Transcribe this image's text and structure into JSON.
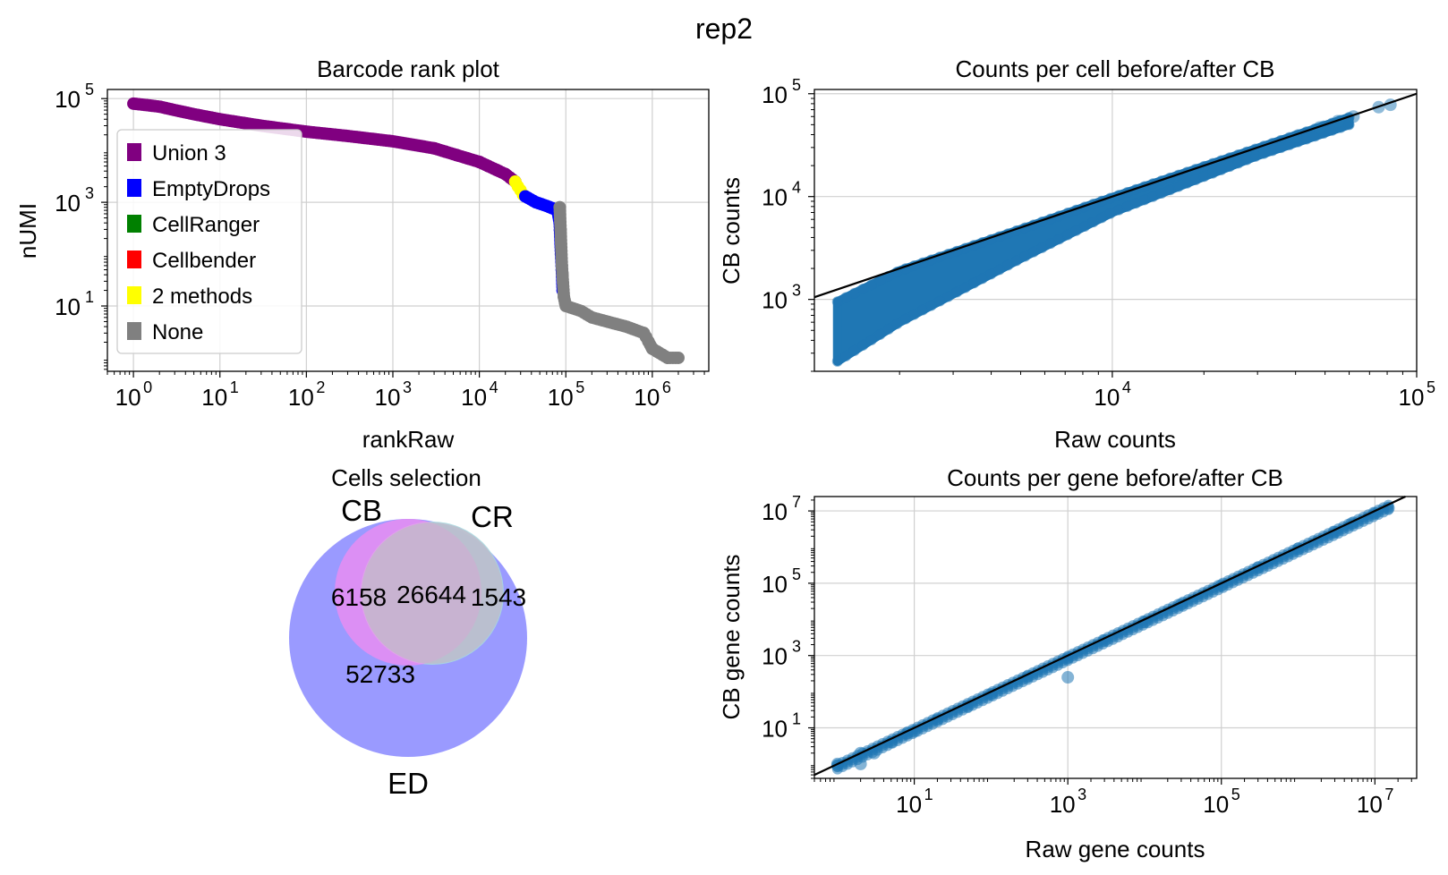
{
  "figure": {
    "suptitle": "rep2"
  },
  "chart_data": [
    {
      "id": "barcode",
      "type": "scatter",
      "title": "Barcode rank plot",
      "xlabel": "rankRaw",
      "ylabel": "nUMI",
      "xscale": "log",
      "yscale": "log",
      "xlim": [
        0.5,
        4500000
      ],
      "ylim": [
        0.55,
        150000
      ],
      "xticks": [
        1,
        10,
        100,
        1000,
        10000,
        100000,
        1000000
      ],
      "yticks": [
        10,
        1000,
        100000
      ],
      "grid": true,
      "legend": {
        "placement": "center-left",
        "entries": [
          {
            "label": "Union 3",
            "color": "#800080"
          },
          {
            "label": "EmptyDrops",
            "color": "#0000ff"
          },
          {
            "label": "CellRanger",
            "color": "#008000"
          },
          {
            "label": "Cellbender",
            "color": "#ff0000"
          },
          {
            "label": "2 methods",
            "color": "#ffff00"
          },
          {
            "label": "None",
            "color": "#808080"
          }
        ]
      },
      "series": [
        {
          "name": "Union 3",
          "color": "#800080",
          "x": [
            1,
            2,
            3,
            5,
            10,
            30,
            100,
            300,
            1000,
            3000,
            10000,
            20000,
            26000
          ],
          "y": [
            80000,
            70000,
            60000,
            50000,
            40000,
            30000,
            23000,
            19000,
            15000,
            11000,
            6000,
            3500,
            2500
          ]
        },
        {
          "name": "2 methods",
          "color": "#ffff00",
          "x": [
            26000,
            28000,
            30000,
            32000
          ],
          "y": [
            2500,
            2000,
            1700,
            1400
          ]
        },
        {
          "name": "EmptyDrops",
          "color": "#0000ff",
          "x": [
            34000,
            45000,
            60000,
            80000,
            85000,
            88000,
            90000,
            92000
          ],
          "y": [
            1300,
            1000,
            850,
            700,
            400,
            100,
            50,
            20
          ]
        },
        {
          "name": "None",
          "color": "#808080",
          "x": [
            85000,
            87000,
            90000,
            95000,
            100000,
            150000,
            200000,
            300000,
            500000,
            800000,
            1000000,
            1500000,
            2000000
          ],
          "y": [
            800,
            300,
            60,
            15,
            10,
            8,
            6,
            5,
            4,
            3,
            1.5,
            1,
            1
          ]
        }
      ]
    },
    {
      "id": "cells",
      "type": "scatter",
      "title": "Counts per cell before/after CB",
      "xlabel": "Raw counts",
      "ylabel": "CB counts",
      "xscale": "log",
      "yscale": "log",
      "xlim": [
        1050,
        100000
      ],
      "ylim": [
        200,
        110000
      ],
      "xticks": [
        10000,
        100000
      ],
      "yticks": [
        1000,
        10000,
        100000
      ],
      "grid": true,
      "diagonal": "y = x",
      "band": {
        "x": [
          1250,
          2000,
          5000,
          10000,
          30000,
          60000
        ],
        "ylow": [
          250,
          600,
          2500,
          7000,
          25000,
          50000
        ],
        "yhigh": [
          950,
          1900,
          4800,
          9800,
          29500,
          59000
        ]
      },
      "outliers": {
        "x": [
          40000,
          48000,
          55000,
          62000,
          75000,
          82000
        ],
        "y": [
          38000,
          47000,
          54000,
          60000,
          74000,
          78000
        ]
      }
    },
    {
      "id": "venn",
      "type": "venn",
      "title": "Cells selection",
      "sets": [
        {
          "label": "CB",
          "color": "#ff77ee"
        },
        {
          "label": "CR",
          "color": "#99ccdd"
        },
        {
          "label": "ED",
          "color": "#8888ff"
        }
      ],
      "regions": [
        {
          "sets": [
            "CB",
            "ED"
          ],
          "value": 6158
        },
        {
          "sets": [
            "CB",
            "CR",
            "ED"
          ],
          "value": 26644
        },
        {
          "sets": [
            "CR",
            "ED"
          ],
          "value": 1543
        },
        {
          "sets": [
            "ED"
          ],
          "value": 52733
        }
      ]
    },
    {
      "id": "genes",
      "type": "scatter",
      "title": "Counts per gene before/after CB",
      "xlabel": "Raw gene counts",
      "ylabel": "CB gene counts",
      "xscale": "log",
      "yscale": "log",
      "xlim": [
        0.5,
        35000000
      ],
      "ylim": [
        0.4,
        25000000
      ],
      "xticks": [
        10,
        1000,
        100000,
        10000000
      ],
      "yticks": [
        10,
        1000,
        100000,
        10000000
      ],
      "grid": true,
      "diagonal": "y = x",
      "points": {
        "x": [
          1,
          1,
          2,
          2,
          3,
          5,
          8,
          10,
          20,
          50,
          100,
          300,
          1000,
          1000,
          3000,
          10000,
          30000,
          100000,
          300000,
          1000000,
          3000000,
          5000000,
          10000000,
          15000000
        ],
        "y": [
          1,
          0.9,
          2,
          1,
          2,
          4,
          7,
          8,
          17,
          40,
          85,
          260,
          850,
          250,
          2600,
          8500,
          26000,
          87000,
          270000,
          900000,
          2600000,
          4500000,
          8500000,
          12000000
        ]
      }
    }
  ]
}
